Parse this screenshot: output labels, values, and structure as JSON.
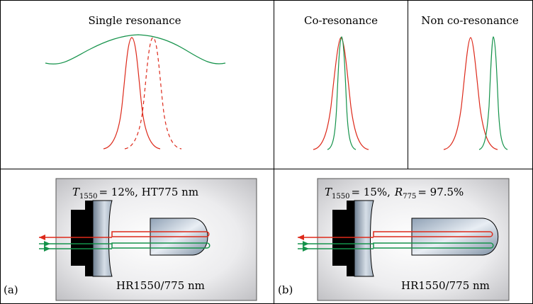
{
  "panels": {
    "top_left_title": "Single resonance",
    "top_mid_title": "Co-resonance",
    "top_right_title": "Non co-resonance",
    "panel_a_label": "(a)",
    "panel_b_label": "(b)"
  },
  "cavity_a": {
    "spec_T_symbol": "T",
    "spec_T_sub": "1550",
    "spec_T_value": "= 12%, HT775 nm",
    "coating": "HR1550/775 nm"
  },
  "cavity_b": {
    "spec_T_symbol": "T",
    "spec_T_sub": "1550",
    "spec_T_value": "= 15%,",
    "spec_R_symbol": "R",
    "spec_R_sub": "775",
    "spec_R_value": "= 97.5%",
    "coating": "HR1550/775 nm"
  },
  "colors": {
    "red": "#dd2a1b",
    "green": "#14924a",
    "grid": "#000000",
    "box_gray": "#c9c9cb"
  }
}
